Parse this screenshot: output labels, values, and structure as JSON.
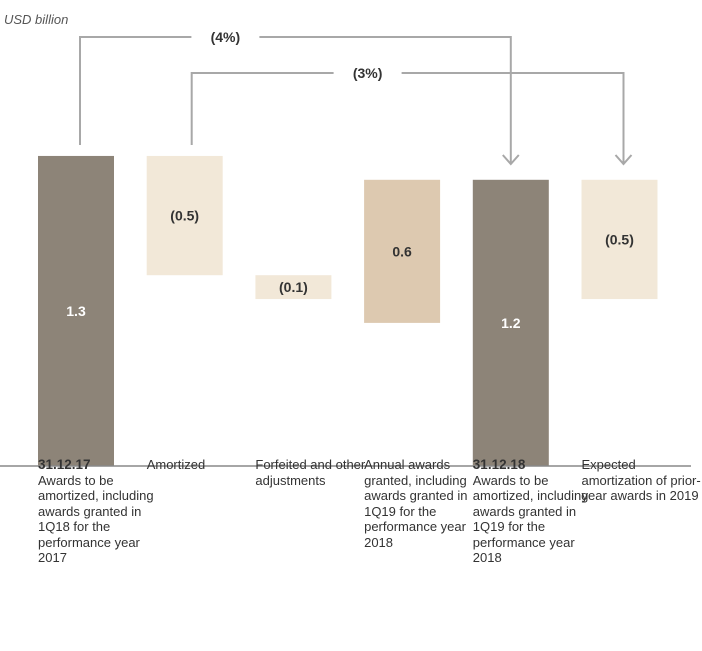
{
  "chart_data": {
    "type": "waterfall",
    "unit_label": "USD billion",
    "ylim": [
      0,
      1.4
    ],
    "bars": [
      {
        "name": "start",
        "head": "31.12.17",
        "label": "Awards to be amortized, including awards granted in 1Q18 for the performance year 2017",
        "value": 1.3,
        "base": 0,
        "top": 1.3,
        "value_label": "1.3",
        "color": "#8d8478",
        "text_color": "#ffffff"
      },
      {
        "name": "amortized",
        "head": "",
        "label": "Amortized",
        "value": -0.5,
        "base": 0.8,
        "top": 1.3,
        "value_label": "(0.5)",
        "color": "#f2e8d8",
        "text_color": "#333333"
      },
      {
        "name": "forfeited",
        "head": "",
        "label": "Forfeited and other adjustments",
        "value": -0.1,
        "base": 0.7,
        "top": 0.8,
        "value_label": "(0.1)",
        "color": "#f2e8d8",
        "text_color": "#333333"
      },
      {
        "name": "annual",
        "head": "",
        "label": "Annual awards granted, including awards granted in 1Q19 for the performance year 2018",
        "value": 0.6,
        "base": 0.6,
        "top": 1.2,
        "value_label": "0.6",
        "color": "#ddc9b0",
        "text_color": "#333333"
      },
      {
        "name": "end",
        "head": "31.12.18",
        "label": "Awards to be amortized, including awards granted in 1Q19 for the performance year 2018",
        "value": 1.2,
        "base": 0,
        "top": 1.2,
        "value_label": "1.2",
        "color": "#8d8478",
        "text_color": "#ffffff"
      },
      {
        "name": "expected",
        "head": "",
        "label": "Expected amortization of prior-year awards in 2019",
        "value": -0.5,
        "base": 0.7,
        "top": 1.2,
        "value_label": "(0.5)",
        "color": "#f2e8d8",
        "text_color": "#333333"
      }
    ],
    "annotations": [
      {
        "label": "(4%)",
        "from": 0,
        "to": 4
      },
      {
        "label": "(3%)",
        "from": 1,
        "to": 5
      }
    ]
  },
  "colors": {
    "arrow": "#a8a8a8",
    "baseline": "#888888"
  }
}
